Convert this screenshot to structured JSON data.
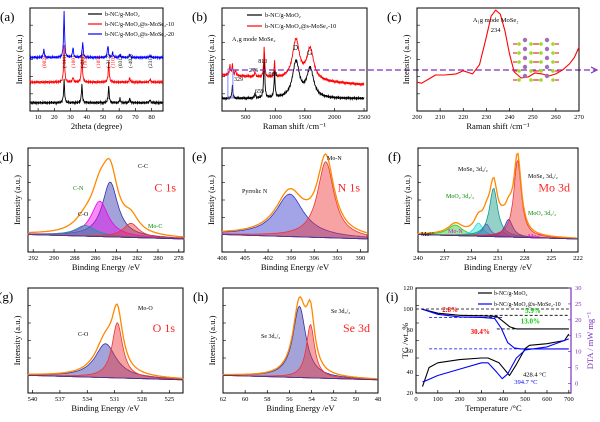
{
  "chart_data": [
    {
      "id": "a",
      "panel_label": "(a)",
      "type": "line",
      "title": "",
      "xlabel": "2theta (degree)",
      "ylabel": "Intensity (a.u.)",
      "xlim": [
        5,
        87
      ],
      "xticks": [
        10,
        20,
        30,
        40,
        50,
        60,
        70,
        80
      ],
      "legend_position": "top-right",
      "series": [
        {
          "name": "b-NC/g-MoO₂",
          "color": "#000000",
          "offset": 0.08,
          "peaks": [
            [
              26,
              0.22
            ],
            [
              37,
              0.18
            ],
            [
              53.5,
              0.16
            ],
            [
              60.5,
              0.04
            ],
            [
              66.5,
              0.04
            ],
            [
              79,
              0.03
            ]
          ]
        },
        {
          "name": "b-NC/g-MoO₂@s-MoSe₂-10",
          "color": "#ff0000",
          "offset": 0.28,
          "peaks": [
            [
              26,
              0.35
            ],
            [
              31.5,
              0.05
            ],
            [
              37,
              0.3
            ],
            [
              53.5,
              0.2
            ],
            [
              66.5,
              0.04
            ],
            [
              79,
              0.03
            ]
          ]
        },
        {
          "name": "b-NC/g-MoO₂@s-MoSe₂-20",
          "color": "#0000ff",
          "offset": 0.52,
          "peaks": [
            [
              13.5,
              0.08
            ],
            [
              26,
              0.45
            ],
            [
              31.5,
              0.1
            ],
            [
              37.5,
              0.15
            ],
            [
              53,
              0.12
            ],
            [
              56,
              0.05
            ],
            [
              60.5,
              0.03
            ],
            [
              66.5,
              0.03
            ],
            [
              79,
              0.02
            ]
          ]
        }
      ],
      "annotations": [
        {
          "text": "(002)",
          "x": 13.5,
          "color": "#ff0000"
        },
        {
          "text": "(-111)",
          "x": 26,
          "color": "#000000"
        },
        {
          "text": "(100)",
          "x": 31.5,
          "color": "#ff0000"
        },
        {
          "text": "(-211)",
          "x": 37,
          "color": "#000000"
        },
        {
          "text": "(103)",
          "x": 38.5,
          "color": "#ff0000"
        },
        {
          "text": "(105)",
          "x": 47,
          "color": "#ff0000"
        },
        {
          "text": "(-312)",
          "x": 53,
          "color": "#000000"
        },
        {
          "text": "(110)",
          "x": 56,
          "color": "#ff0000"
        },
        {
          "text": "(031)",
          "x": 60.5,
          "color": "#000000"
        },
        {
          "text": "(-402)",
          "x": 66.5,
          "color": "#000000"
        },
        {
          "text": "(231)",
          "x": 79,
          "color": "#000000"
        }
      ]
    },
    {
      "id": "b",
      "panel_label": "(b)",
      "type": "line",
      "xlabel": "Raman shift /cm⁻¹",
      "ylabel": "Intensity (a.u.)",
      "xlim": [
        100,
        2550
      ],
      "xticks": [
        500,
        1000,
        1500,
        2000,
        2500
      ],
      "legend_position": "top-right",
      "series": [
        {
          "name": "b-NC/g-MoO₂",
          "color": "#000000",
          "offset": 0.12,
          "peaks": [
            [
              276,
              0.12
            ],
            [
              659,
              0.05
            ],
            [
              813,
              0.45
            ],
            [
              988,
              0.25
            ],
            [
              1350,
              0.35
            ],
            [
              1590,
              0.28
            ]
          ]
        },
        {
          "name": "b-NC/g-MoO₂@s-MoSe₂-10",
          "color": "#ff0000",
          "offset": 0.35,
          "peaks": [
            [
              234,
              0.1
            ],
            [
              276,
              0.1
            ],
            [
              329,
              0.05
            ],
            [
              659,
              0.05
            ],
            [
              813,
              0.3
            ],
            [
              988,
              0.15
            ],
            [
              1350,
              0.38
            ],
            [
              1590,
              0.3
            ]
          ]
        }
      ],
      "annotations": [
        {
          "text": "A₁g mode MoSe₂"
        },
        {
          "text": "276"
        },
        {
          "text": "329"
        },
        {
          "text": "659"
        },
        {
          "text": "813"
        },
        {
          "text": "988"
        },
        {
          "text": "D"
        },
        {
          "text": "G"
        }
      ]
    },
    {
      "id": "c",
      "panel_label": "(c)",
      "type": "line",
      "xlabel": "Raman shift /cm⁻¹",
      "ylabel": "Intensity (a.u.)",
      "xlim": [
        200,
        270
      ],
      "xticks": [
        200,
        210,
        220,
        230,
        240,
        250,
        260,
        270
      ],
      "series": [
        {
          "name": "b-NC/g-MoO₂@s-MoSe₂-10",
          "color": "#ff0000",
          "x": [
            200,
            202,
            205,
            208,
            212,
            217,
            220,
            224,
            227,
            230,
            232,
            234,
            236,
            238,
            240,
            242,
            245,
            248,
            251,
            254,
            257,
            260,
            263,
            266,
            268,
            270
          ],
          "y": [
            0.28,
            0.27,
            0.31,
            0.35,
            0.35,
            0.36,
            0.39,
            0.36,
            0.45,
            0.72,
            0.92,
            0.98,
            0.94,
            0.78,
            0.55,
            0.38,
            0.32,
            0.33,
            0.37,
            0.36,
            0.34,
            0.36,
            0.4,
            0.46,
            0.52,
            0.62
          ]
        }
      ],
      "annotations": [
        {
          "text": "A₁g mode MoSe₂"
        },
        {
          "text": "234"
        }
      ]
    },
    {
      "id": "d",
      "panel_label": "(d)",
      "type": "area",
      "xlabel": "Binding Energy /eV",
      "ylabel": "Intensity (a.u.)",
      "xlim": [
        292.5,
        277.5
      ],
      "xticks": [
        292,
        290,
        288,
        286,
        284,
        282,
        280,
        278
      ],
      "element_label": "C 1s",
      "components": [
        {
          "name": "C-C",
          "center": 284.6,
          "height": 0.62,
          "width": 0.9,
          "color": "#3333aa"
        },
        {
          "name": "C-N",
          "center": 285.6,
          "height": 0.4,
          "width": 1.0,
          "color": "#ee00ee"
        },
        {
          "name": "C-O",
          "center": 287.0,
          "height": 0.12,
          "width": 1.2,
          "color": "#119999"
        },
        {
          "name": "Mo-C",
          "center": 282.6,
          "height": 0.16,
          "width": 0.9,
          "color": "#ee3333"
        }
      ],
      "annotations": [
        {
          "text": "C-C",
          "color": "#000000"
        },
        {
          "text": "C-N",
          "color": "#008800"
        },
        {
          "text": "C-O",
          "color": "#000000"
        },
        {
          "text": "Mo-C",
          "color": "#008800"
        }
      ]
    },
    {
      "id": "e",
      "panel_label": "(e)",
      "type": "area",
      "xlabel": "Binding Energy /eV",
      "ylabel": "Intensity (a.u.)",
      "xlim": [
        408,
        389
      ],
      "xticks": [
        408,
        405,
        402,
        399,
        396,
        393,
        390
      ],
      "element_label": "N 1s",
      "components": [
        {
          "name": "Pyrrolic N",
          "center": 399.2,
          "height": 0.48,
          "width": 2.2,
          "color": "#3333cc"
        },
        {
          "name": "Mo-N",
          "center": 394.5,
          "height": 0.86,
          "width": 1.3,
          "color": "#ee3333"
        }
      ],
      "annotations": [
        {
          "text": "Pyrrolic N"
        },
        {
          "text": "Mo-N"
        }
      ]
    },
    {
      "id": "f",
      "panel_label": "(f)",
      "type": "area",
      "xlabel": "Binding Energy /eV",
      "ylabel": "Intensity (a.u.)",
      "xlim": [
        240,
        222
      ],
      "xticks": [
        240,
        237,
        234,
        231,
        228,
        225,
        222
      ],
      "element_label": "Mo 3d",
      "components": [
        {
          "name": "Mo⁶⁺",
          "center": 235.8,
          "height": 0.12,
          "width": 1.0,
          "color": "#22cc22"
        },
        {
          "name": "MoO₂ 3d₃/₂",
          "center": 233.2,
          "height": 0.15,
          "width": 0.6,
          "color": "#22dddd"
        },
        {
          "name": "Mo-N",
          "center": 232.3,
          "height": 0.14,
          "width": 0.5,
          "color": "#8844ee"
        },
        {
          "name": "MoSe₂ 3d₃/₂",
          "center": 231.5,
          "height": 0.55,
          "width": 0.55,
          "color": "#119988"
        },
        {
          "name": "Mo-C",
          "center": 230.5,
          "height": 0.06,
          "width": 0.5,
          "color": "#ee33ee"
        },
        {
          "name": "MoO₂ 3d₅/₂",
          "center": 229.8,
          "height": 0.2,
          "width": 0.55,
          "color": "#3333cc"
        },
        {
          "name": "MoSe₂ 3d₅/₂",
          "center": 228.8,
          "height": 0.88,
          "width": 0.5,
          "color": "#ee3333"
        }
      ],
      "annotations": [
        {
          "text": "MoSe₂ 3d₃/₂",
          "color": "#000000"
        },
        {
          "text": "MoSe₂ 3d₅/₂",
          "color": "#000000"
        },
        {
          "text": "MoO₂ 3d₃/₂",
          "color": "#008800"
        },
        {
          "text": "MoO₂ 3d₅/₂",
          "color": "#008800"
        },
        {
          "text": "Mo⁶⁺",
          "color": "#000000"
        },
        {
          "text": "Mo-N",
          "color": "#dd00dd"
        },
        {
          "text": "Mo-C",
          "color": "#dd00dd"
        }
      ]
    },
    {
      "id": "g",
      "panel_label": "(g)",
      "type": "area",
      "xlabel": "Binding Energy /eV",
      "ylabel": "Intensity (a.u.)",
      "xlim": [
        540.5,
        523.5
      ],
      "xticks": [
        540,
        537,
        534,
        531,
        528,
        525
      ],
      "element_label": "O 1s",
      "components": [
        {
          "name": "C-O",
          "center": 532.0,
          "height": 0.38,
          "width": 1.4,
          "color": "#3333aa"
        },
        {
          "name": "Mo-O",
          "center": 530.7,
          "height": 0.62,
          "width": 0.7,
          "color": "#ee3333"
        }
      ],
      "annotations": [
        {
          "text": "C-O"
        },
        {
          "text": "Mo-O"
        }
      ]
    },
    {
      "id": "h",
      "panel_label": "(h)",
      "type": "area",
      "xlabel": "Binding Energy /eV",
      "ylabel": "Intensity (a.u.)",
      "xlim": [
        62,
        48
      ],
      "xticks": [
        62,
        60,
        58,
        56,
        54,
        52,
        50,
        48
      ],
      "element_label": "Se 3d",
      "components": [
        {
          "name": "Se 3d₅/₂",
          "center": 55.1,
          "height": 0.8,
          "width": 0.7,
          "color": "#3333aa"
        },
        {
          "name": "Se 3d₃/₂",
          "center": 54.1,
          "height": 0.6,
          "width": 0.45,
          "color": "#ee3333"
        }
      ],
      "annotations": [
        {
          "text": "Se 3d₅/₂"
        },
        {
          "text": "Se 3d₃/₂"
        }
      ]
    },
    {
      "id": "i",
      "panel_label": "(i)",
      "type": "line",
      "xlabel": "Temperature /°C",
      "ylabel": "TG /wt. %",
      "y2label": "DTA / mW mg⁻¹",
      "xlim": [
        0,
        710
      ],
      "ylim": [
        20,
        120
      ],
      "y2lim": [
        -3,
        30
      ],
      "xticks": [
        0,
        100,
        200,
        300,
        400,
        500,
        600,
        700
      ],
      "yticks": [
        20,
        40,
        60,
        80,
        100,
        120
      ],
      "y2ticks": [
        0,
        5,
        10,
        15,
        20,
        25,
        30
      ],
      "legend_position": "top-right",
      "series": [
        {
          "name": "b-NC/g-MoO₂",
          "color": "#000000",
          "kind": "TG",
          "x": [
            25,
            100,
            200,
            300,
            370,
            400,
            430,
            460,
            500,
            700
          ],
          "y": [
            100,
            96,
            94,
            93.5,
            93,
            88,
            83,
            81,
            81,
            81
          ]
        },
        {
          "name": "b-NC/g-MoO₂@s-MoSe₂-10",
          "color": "#0000ff",
          "kind": "TG",
          "x": [
            25,
            100,
            200,
            300,
            360,
            390,
            420,
            450,
            480,
            700
          ],
          "y": [
            100,
            95,
            92.5,
            92,
            91,
            82,
            68,
            63,
            62,
            62
          ]
        },
        {
          "name": "b-NC/g-MoO₂ DTA",
          "color": "#000000",
          "kind": "DTA",
          "x": [
            30,
            60,
            100,
            200,
            300,
            330,
            380,
            428.4,
            460,
            500,
            520,
            600,
            680,
            700
          ],
          "y": [
            -1,
            5,
            6.5,
            7.5,
            8,
            8,
            6.5,
            2.5,
            6,
            11,
            12,
            12.5,
            13.5,
            15.5
          ]
        },
        {
          "name": "b-NC/g-MoO₂@s-MoSe₂-10 DTA",
          "color": "#0000ff",
          "kind": "DTA",
          "x": [
            30,
            50,
            100,
            200,
            300,
            330,
            370,
            394.7,
            420,
            460,
            500,
            600,
            700
          ],
          "y": [
            0.5,
            1,
            2.5,
            4.5,
            6.5,
            6.5,
            3.5,
            1.5,
            3,
            8,
            10.5,
            11.5,
            14
          ]
        }
      ],
      "annotations": [
        {
          "text": "2.8%",
          "color": "#ff0000"
        },
        {
          "text": "5.9%",
          "color": "#00cc00"
        },
        {
          "text": "13.0%",
          "color": "#00cc00"
        },
        {
          "text": "30.4%",
          "color": "#ff0000"
        },
        {
          "text": "428.4 °C",
          "color": "#000000"
        },
        {
          "text": "394.7 °C",
          "color": "#0000ff"
        }
      ]
    }
  ]
}
